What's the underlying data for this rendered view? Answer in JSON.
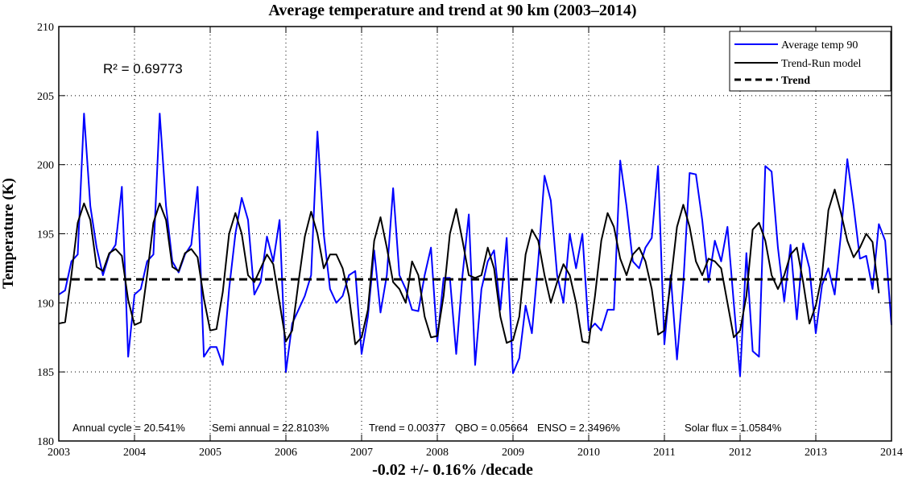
{
  "chart_data": {
    "type": "line",
    "title": "Average  temperature and  trend at 90 km  (2003–2014)",
    "xlabel": "-0.02 +/- 0.16% /decade",
    "ylabel": "Temperature (K)",
    "xlim": [
      2003,
      2014
    ],
    "ylim": [
      180,
      210
    ],
    "xticks": [
      "2003",
      "2004",
      "2005",
      "2006",
      "2007",
      "2008",
      "2009",
      "2010",
      "2011",
      "2012",
      "2013",
      "2014"
    ],
    "yticks": [
      "180",
      "185",
      "190",
      "195",
      "200",
      "205",
      "210"
    ],
    "grid": true,
    "legend_position": "top-right",
    "annotation_r2": "R² = 0.69773",
    "annotation_stats": [
      "Annual  cycle = 20.541%",
      "Semi annual = 22.8103%",
      "Trend = 0.00377",
      "QBO = 0.05664",
      "ENSO = 2.3496%",
      "Solar flux = 1.0584%"
    ],
    "x_start": 2003.0,
    "x_step_years": 0.08333,
    "series": [
      {
        "name": "Average temp 90",
        "color": "#0000ff",
        "style": "solid",
        "values": [
          190.6,
          190.9,
          193,
          193.5,
          203.7,
          197,
          194,
          192,
          193.5,
          194.2,
          198.4,
          186.1,
          190.6,
          191,
          193,
          193.5,
          203.7,
          197,
          193,
          192.2,
          193.5,
          194.2,
          198.4,
          186.1,
          186.8,
          186.8,
          185.5,
          191,
          195,
          197.6,
          196,
          190.6,
          191.5,
          194.8,
          193,
          196,
          185,
          188.5,
          189.5,
          190.5,
          192,
          202.4,
          195,
          191,
          190,
          190.5,
          192,
          192.3,
          186.3,
          189,
          193.8,
          189.3,
          192,
          198.3,
          192,
          191,
          189.5,
          189.4,
          192,
          194,
          187.2,
          191.8,
          191.8,
          186.3,
          192,
          196.4,
          185.5,
          191,
          193,
          193.8,
          189.5,
          194.7,
          184.9,
          186,
          189.8,
          187.8,
          193,
          199.2,
          197.4,
          192,
          190,
          195,
          192.5,
          195,
          188,
          188.5,
          188,
          189.5,
          189.5,
          200.3,
          197,
          193,
          192.5,
          194,
          194.7,
          199.9,
          187,
          192,
          185.9,
          191.4,
          199.4,
          199.3,
          196,
          191.5,
          194.5,
          193,
          195.5,
          190,
          184.7,
          193.6,
          186.5,
          186.1,
          199.9,
          199.5,
          194,
          190.1,
          194.2,
          188.8,
          194.3,
          192.5,
          187.8,
          191.3,
          192.5,
          190.6,
          195,
          200.4,
          197,
          193.2,
          193.4,
          191,
          195.7,
          194.5,
          188.4
        ]
      },
      {
        "name": "Trend-Run model",
        "color": "#000000",
        "style": "solid",
        "values": [
          188.5,
          188.6,
          192,
          195.8,
          197.2,
          196,
          192.6,
          192.3,
          193.6,
          193.9,
          193.4,
          190.2,
          188.4,
          188.6,
          192,
          195.8,
          197.2,
          196,
          192.6,
          192.3,
          193.6,
          193.9,
          193.3,
          190.3,
          188,
          188.1,
          190.8,
          195,
          196.5,
          195,
          192,
          191.5,
          192.5,
          193.5,
          192.8,
          190,
          187.2,
          188,
          191.5,
          194.8,
          196.6,
          195,
          192.5,
          193.5,
          193.5,
          192.5,
          190.5,
          187,
          187.5,
          189.5,
          194.5,
          196.2,
          194,
          191.5,
          191,
          190,
          193,
          192,
          189,
          187.5,
          187.6,
          190.5,
          195,
          196.8,
          194.5,
          192,
          191.8,
          192,
          194,
          192.5,
          189,
          187.1,
          187.3,
          189,
          193.5,
          195.3,
          194.5,
          192,
          190,
          191.5,
          192.8,
          192,
          190,
          187.2,
          187.1,
          190.5,
          194.5,
          196.5,
          195.5,
          193.2,
          192,
          193.5,
          194,
          193,
          191,
          187.7,
          188,
          191.5,
          195.5,
          197.1,
          195.5,
          193,
          192,
          193.2,
          193,
          192.5,
          190,
          187.5,
          188,
          190.5,
          195.3,
          195.8,
          194.5,
          192,
          191,
          192,
          193.5,
          194,
          191.5,
          188.5,
          189.8,
          192,
          196.7,
          198.2,
          196.5,
          194.5,
          193.3,
          194,
          195,
          194.4,
          190.7
        ]
      },
      {
        "name": "Trend",
        "color": "#000000",
        "style": "dashed",
        "values": [
          191.7,
          191.7
        ]
      }
    ]
  }
}
